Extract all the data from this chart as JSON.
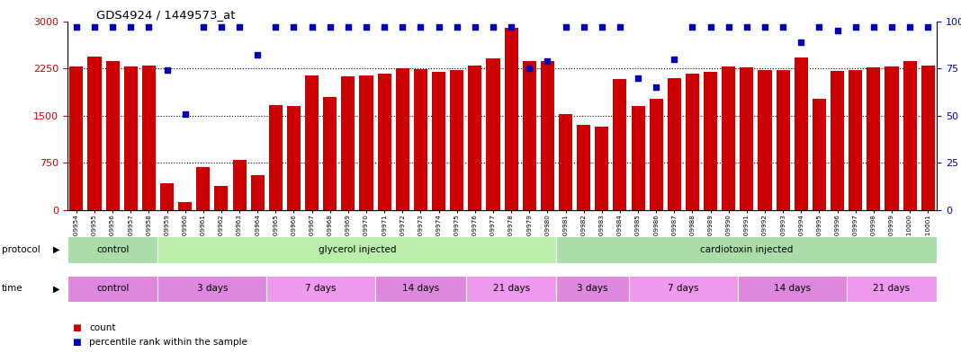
{
  "title": "GDS4924 / 1449573_at",
  "samples": [
    "GSM1109954",
    "GSM1109955",
    "GSM1109956",
    "GSM1109957",
    "GSM1109958",
    "GSM1109959",
    "GSM1109960",
    "GSM1109961",
    "GSM1109962",
    "GSM1109963",
    "GSM1109964",
    "GSM1109965",
    "GSM1109966",
    "GSM1109967",
    "GSM1109968",
    "GSM1109969",
    "GSM1109970",
    "GSM1109971",
    "GSM1109972",
    "GSM1109973",
    "GSM1109974",
    "GSM1109975",
    "GSM1109976",
    "GSM1109977",
    "GSM1109978",
    "GSM1109979",
    "GSM1109980",
    "GSM1109981",
    "GSM1109982",
    "GSM1109983",
    "GSM1109984",
    "GSM1109985",
    "GSM1109986",
    "GSM1109987",
    "GSM1109988",
    "GSM1109989",
    "GSM1109990",
    "GSM1109991",
    "GSM1109992",
    "GSM1109993",
    "GSM1109994",
    "GSM1109995",
    "GSM1109996",
    "GSM1109997",
    "GSM1109998",
    "GSM1109999",
    "GSM1110000",
    "GSM1110001"
  ],
  "bar_values": [
    2280,
    2440,
    2360,
    2280,
    2290,
    430,
    130,
    680,
    380,
    800,
    550,
    1660,
    1650,
    2140,
    1800,
    2130,
    2140,
    2160,
    2250,
    2240,
    2200,
    2220,
    2290,
    2410,
    2900,
    2360,
    2370,
    1530,
    1350,
    1330,
    2080,
    1650,
    1770,
    2100,
    2170,
    2190,
    2280,
    2260,
    2230,
    2220,
    2430,
    1760,
    2210,
    2230,
    2260,
    2280,
    2360,
    2290
  ],
  "percentile_values": [
    97,
    97,
    97,
    97,
    97,
    74,
    51,
    97,
    97,
    97,
    82,
    97,
    97,
    97,
    97,
    97,
    97,
    97,
    97,
    97,
    97,
    97,
    97,
    97,
    97,
    75,
    79,
    97,
    97,
    97,
    97,
    70,
    65,
    80,
    97,
    97,
    97,
    97,
    97,
    97,
    89,
    97,
    95,
    97,
    97,
    97,
    97,
    97
  ],
  "bar_color": "#cc0000",
  "dot_color": "#0000bb",
  "ylim_left": [
    0,
    3000
  ],
  "ylim_right": [
    0,
    100
  ],
  "yticks_left": [
    0,
    750,
    1500,
    2250,
    3000
  ],
  "yticks_right": [
    0,
    25,
    50,
    75,
    100
  ],
  "protocol_groups": [
    {
      "label": "control",
      "start": 0,
      "end": 4,
      "color": "#aaddaa"
    },
    {
      "label": "glycerol injected",
      "start": 5,
      "end": 26,
      "color": "#bbeeaa"
    },
    {
      "label": "cardiotoxin injected",
      "start": 27,
      "end": 47,
      "color": "#aaddaa"
    }
  ],
  "time_groups": [
    {
      "label": "control",
      "start": 0,
      "end": 4,
      "color": "#dd88dd"
    },
    {
      "label": "3 days",
      "start": 5,
      "end": 10,
      "color": "#dd88dd"
    },
    {
      "label": "7 days",
      "start": 11,
      "end": 16,
      "color": "#ee99ee"
    },
    {
      "label": "14 days",
      "start": 17,
      "end": 21,
      "color": "#dd88dd"
    },
    {
      "label": "21 days",
      "start": 22,
      "end": 26,
      "color": "#ee99ee"
    },
    {
      "label": "3 days",
      "start": 27,
      "end": 30,
      "color": "#dd88dd"
    },
    {
      "label": "7 days",
      "start": 31,
      "end": 36,
      "color": "#ee99ee"
    },
    {
      "label": "14 days",
      "start": 37,
      "end": 42,
      "color": "#dd88dd"
    },
    {
      "label": "21 days",
      "start": 43,
      "end": 47,
      "color": "#ee99ee"
    }
  ],
  "background_color": "#ffffff",
  "tick_label_color_left": "#cc0000",
  "tick_label_color_right": "#0000bb",
  "bar_width": 0.75
}
